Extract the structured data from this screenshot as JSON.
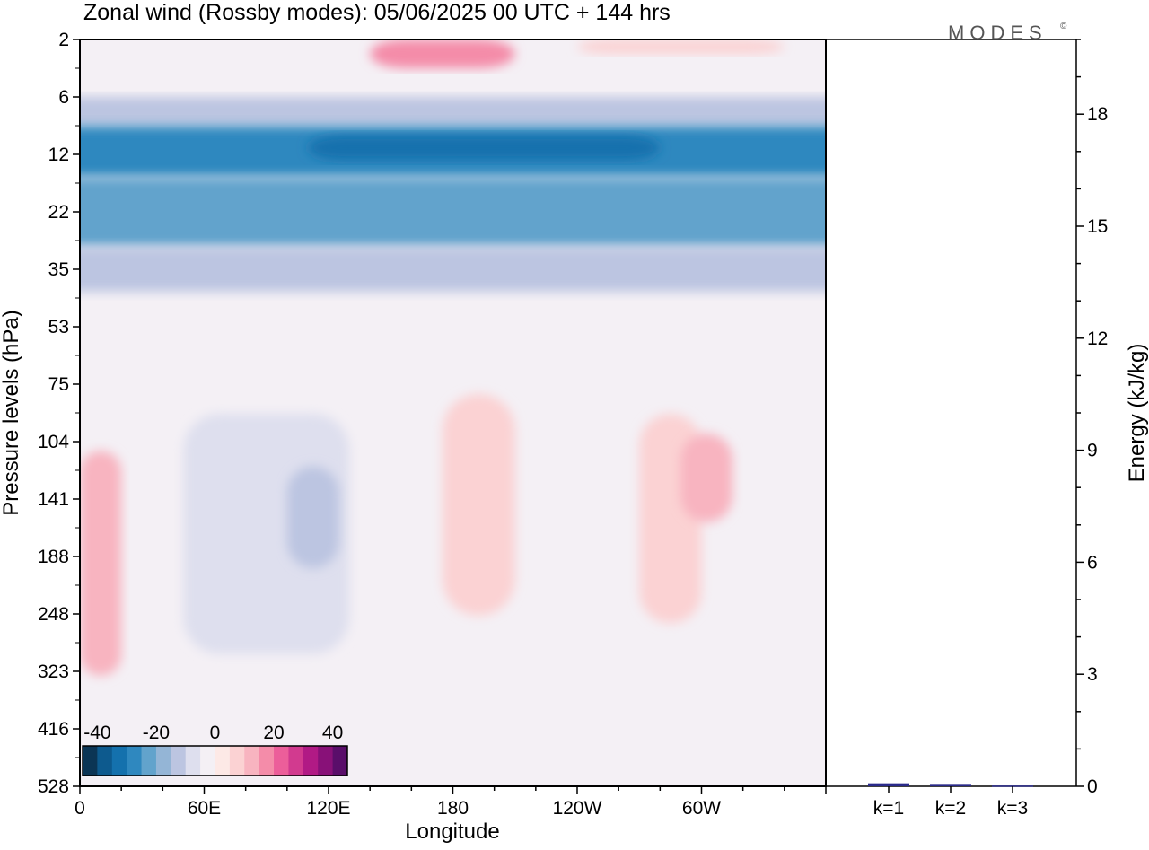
{
  "page": {
    "title": "Zonal wind (Rossby modes):  05/06/2025  00 UTC  + 144 hrs",
    "brand": "MODES",
    "brand_mark": "©"
  },
  "chart_data": [
    {
      "type": "heatmap",
      "title": "Zonal wind (Rossby modes):  05/06/2025  00 UTC  + 144 hrs",
      "xlabel": "Longitude",
      "ylabel": "Pressure levels (hPa)",
      "x_ticks": [
        "0",
        "60E",
        "120E",
        "180",
        "120W",
        "60W"
      ],
      "x_tick_degrees": [
        0,
        60,
        120,
        180,
        240,
        300
      ],
      "xlim": [
        0,
        360
      ],
      "y_ticks": [
        2,
        6,
        12,
        22,
        35,
        53,
        75,
        104,
        141,
        188,
        248,
        323,
        416,
        528
      ],
      "y_order": "top-to-bottom",
      "colorbar": {
        "ticks": [
          "-40",
          "-20",
          "0",
          "20",
          "40"
        ],
        "range": [
          -45,
          45
        ],
        "step": 5,
        "colors": [
          "#0b3555",
          "#0d5a8e",
          "#1471ad",
          "#2f88bf",
          "#62a3cc",
          "#94b5d6",
          "#bcc5e1",
          "#dedfee",
          "#f4f0f5",
          "#fde9e6",
          "#fbd2d3",
          "#f8b4c0",
          "#f48ca9",
          "#ec5e9a",
          "#d23a8f",
          "#b11a85",
          "#881178",
          "#5a0e6a"
        ],
        "location": "bottom-left"
      },
      "regions": [
        {
          "lon": [
            0,
            360
          ],
          "p": [
            6,
            9
          ],
          "value": -12
        },
        {
          "lon": [
            0,
            360
          ],
          "p": [
            9,
            16
          ],
          "value": -30
        },
        {
          "lon": [
            110,
            280
          ],
          "p": [
            10,
            13
          ],
          "value": -35
        },
        {
          "lon": [
            0,
            360
          ],
          "p": [
            16,
            30
          ],
          "value": -22
        },
        {
          "lon": [
            0,
            360
          ],
          "p": [
            30,
            42
          ],
          "value": -12
        },
        {
          "lon": [
            140,
            210
          ],
          "p": [
            2,
            4
          ],
          "value": 15
        },
        {
          "lon": [
            240,
            340
          ],
          "p": [
            2,
            3
          ],
          "value": 5
        },
        {
          "lon": [
            0,
            20
          ],
          "p": [
            110,
            330
          ],
          "value": 12
        },
        {
          "lon": [
            50,
            130
          ],
          "p": [
            90,
            300
          ],
          "value": -6
        },
        {
          "lon": [
            100,
            125
          ],
          "p": [
            120,
            200
          ],
          "value": -12
        },
        {
          "lon": [
            175,
            210
          ],
          "p": [
            80,
            250
          ],
          "value": 8
        },
        {
          "lon": [
            270,
            300
          ],
          "p": [
            90,
            260
          ],
          "value": 8
        },
        {
          "lon": [
            290,
            315
          ],
          "p": [
            100,
            160
          ],
          "value": 12
        },
        {
          "lon": [
            320,
            360
          ],
          "p": [
            420,
            528
          ],
          "value": -4
        }
      ]
    },
    {
      "type": "bar",
      "ylabel": "Energy (kJ/kg)",
      "categories": [
        "k=1",
        "k=2",
        "k=3"
      ],
      "values": [
        0.08,
        0.04,
        0.02
      ],
      "ylim": [
        0,
        20
      ],
      "y_ticks": [
        0,
        3,
        6,
        9,
        12,
        15,
        18
      ],
      "bar_color": "#2a2a8a"
    }
  ]
}
